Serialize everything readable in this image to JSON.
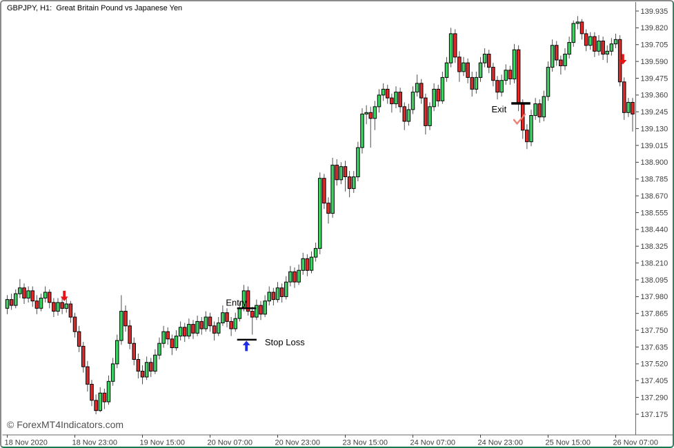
{
  "window": {
    "title": "GBPJPY, H1:  Great Britain Pound vs Japanese Yen",
    "watermark": "© ForexMT4Indicators.com"
  },
  "colors": {
    "background": "#ffffff",
    "bull": "#3ed164",
    "bear": "#e02a2a",
    "candle_outline": "#000000",
    "wick": "#4d4d4d",
    "annotation_line": "#000000",
    "annotation_text": "#000000",
    "buy_arrow": "#1f2de8",
    "sell_arrow": "#ea1212",
    "checkmark": "#ef8070",
    "axis_text": "#3d3d3d",
    "axis_line": "#666666",
    "watermark_text": "#4f4f4f",
    "window_border": "#157a50"
  },
  "chart_data": {
    "type": "candlestick",
    "symbol": "GBPJPY",
    "timeframe": "H1",
    "title": "GBPJPY, H1:  Great Britain Pound vs Japanese Yen",
    "grid": false,
    "legend": false,
    "price_axis": {
      "side": "right",
      "min": 137.175,
      "max": 139.935,
      "step": 0.115,
      "ticks": [
        "139.935",
        "139.820",
        "139.705",
        "139.590",
        "139.475",
        "139.360",
        "139.245",
        "139.130",
        "139.015",
        "138.900",
        "138.785",
        "138.670",
        "138.555",
        "138.440",
        "138.325",
        "138.210",
        "138.095",
        "137.980",
        "137.865",
        "137.750",
        "137.635",
        "137.520",
        "137.405",
        "137.290",
        "137.175"
      ]
    },
    "time_axis": {
      "side": "bottom",
      "ticks": [
        {
          "label": "18 Nov 2020",
          "bar": 0
        },
        {
          "label": "18 Nov 23:00",
          "bar": 16
        },
        {
          "label": "19 Nov 15:00",
          "bar": 32
        },
        {
          "label": "20 Nov 07:00",
          "bar": 48
        },
        {
          "label": "20 Nov 23:00",
          "bar": 64
        },
        {
          "label": "23 Nov 15:00",
          "bar": 80
        },
        {
          "label": "24 Nov 07:00",
          "bar": 96
        },
        {
          "label": "24 Nov 23:00",
          "bar": 112
        },
        {
          "label": "25 Nov 15:00",
          "bar": 128
        },
        {
          "label": "26 Nov 07:00",
          "bar": 144
        }
      ]
    },
    "candles_format": [
      "open",
      "high",
      "low",
      "close"
    ],
    "candles": [
      [
        137.9,
        137.99,
        137.86,
        137.96
      ],
      [
        137.96,
        138.0,
        137.89,
        137.92
      ],
      [
        137.92,
        138.03,
        137.9,
        138.0
      ],
      [
        138.0,
        138.1,
        137.97,
        138.04
      ],
      [
        138.04,
        138.07,
        137.93,
        137.97
      ],
      [
        137.97,
        138.05,
        137.94,
        138.02
      ],
      [
        138.02,
        138.05,
        137.91,
        137.95
      ],
      [
        137.95,
        137.99,
        137.86,
        137.9
      ],
      [
        137.9,
        138.0,
        137.88,
        137.97
      ],
      [
        137.97,
        138.05,
        137.94,
        138.01
      ],
      [
        138.01,
        138.03,
        137.9,
        137.94
      ],
      [
        137.94,
        137.97,
        137.84,
        137.88
      ],
      [
        137.88,
        137.97,
        137.85,
        137.94
      ],
      [
        137.94,
        137.97,
        137.86,
        137.9
      ],
      [
        137.9,
        137.98,
        137.87,
        137.93
      ],
      [
        137.93,
        137.95,
        137.8,
        137.84
      ],
      [
        137.84,
        137.87,
        137.7,
        137.74
      ],
      [
        137.74,
        137.78,
        137.6,
        137.64
      ],
      [
        137.64,
        137.67,
        137.46,
        137.5
      ],
      [
        137.5,
        137.54,
        137.33,
        137.38
      ],
      [
        137.38,
        137.41,
        137.23,
        137.27
      ],
      [
        137.27,
        137.31,
        137.175,
        137.2
      ],
      [
        137.2,
        137.36,
        137.19,
        137.32
      ],
      [
        137.32,
        137.35,
        137.21,
        137.26
      ],
      [
        137.26,
        137.44,
        137.24,
        137.4
      ],
      [
        137.4,
        137.56,
        137.37,
        137.52
      ],
      [
        137.52,
        137.72,
        137.49,
        137.68
      ],
      [
        137.68,
        137.99,
        137.65,
        137.88
      ],
      [
        137.88,
        137.92,
        137.74,
        137.78
      ],
      [
        137.78,
        137.82,
        137.62,
        137.66
      ],
      [
        137.66,
        137.7,
        137.51,
        137.55
      ],
      [
        137.55,
        137.59,
        137.42,
        137.47
      ],
      [
        137.47,
        137.51,
        137.38,
        137.43
      ],
      [
        137.43,
        137.57,
        137.41,
        137.53
      ],
      [
        137.53,
        137.56,
        137.43,
        137.47
      ],
      [
        137.47,
        137.62,
        137.45,
        137.58
      ],
      [
        137.58,
        137.7,
        137.55,
        137.66
      ],
      [
        137.66,
        137.78,
        137.63,
        137.74
      ],
      [
        137.74,
        137.77,
        137.65,
        137.69
      ],
      [
        137.69,
        137.72,
        137.58,
        137.63
      ],
      [
        137.63,
        137.75,
        137.61,
        137.71
      ],
      [
        137.71,
        137.81,
        137.68,
        137.77
      ],
      [
        137.77,
        137.8,
        137.67,
        137.71
      ],
      [
        137.71,
        137.83,
        137.69,
        137.79
      ],
      [
        137.79,
        137.82,
        137.69,
        137.73
      ],
      [
        137.73,
        137.85,
        137.71,
        137.81
      ],
      [
        137.81,
        137.84,
        137.72,
        137.76
      ],
      [
        137.76,
        137.88,
        137.74,
        137.84
      ],
      [
        137.84,
        137.87,
        137.74,
        137.78
      ],
      [
        137.78,
        137.81,
        137.68,
        137.73
      ],
      [
        137.73,
        137.84,
        137.71,
        137.8
      ],
      [
        137.8,
        137.92,
        137.78,
        137.87
      ],
      [
        137.87,
        137.9,
        137.77,
        137.81
      ],
      [
        137.81,
        137.84,
        137.71,
        137.76
      ],
      [
        137.76,
        137.87,
        137.74,
        137.83
      ],
      [
        137.83,
        137.94,
        137.81,
        137.9
      ],
      [
        137.9,
        138.06,
        137.88,
        138.02
      ],
      [
        138.02,
        138.05,
        137.85,
        137.88
      ],
      [
        137.88,
        137.91,
        137.72,
        137.84
      ],
      [
        137.84,
        137.96,
        137.82,
        137.92
      ],
      [
        137.92,
        137.95,
        137.82,
        137.86
      ],
      [
        137.86,
        137.99,
        137.84,
        137.95
      ],
      [
        137.95,
        138.05,
        137.92,
        138.01
      ],
      [
        138.01,
        138.04,
        137.92,
        137.96
      ],
      [
        137.96,
        138.08,
        137.94,
        138.04
      ],
      [
        138.04,
        138.07,
        137.94,
        137.98
      ],
      [
        137.98,
        138.12,
        137.96,
        138.08
      ],
      [
        138.08,
        138.19,
        138.05,
        138.15
      ],
      [
        138.15,
        138.18,
        138.04,
        138.08
      ],
      [
        138.08,
        138.2,
        138.06,
        138.16
      ],
      [
        138.16,
        138.28,
        138.13,
        138.24
      ],
      [
        138.24,
        138.27,
        138.12,
        138.16
      ],
      [
        138.16,
        138.29,
        138.14,
        138.25
      ],
      [
        138.25,
        138.35,
        138.22,
        138.31
      ],
      [
        138.31,
        138.83,
        138.27,
        138.79
      ],
      [
        138.79,
        138.82,
        138.58,
        138.62
      ],
      [
        138.62,
        138.66,
        138.48,
        138.55
      ],
      [
        138.55,
        138.93,
        138.52,
        138.88
      ],
      [
        138.88,
        138.92,
        138.74,
        138.78
      ],
      [
        138.78,
        138.9,
        138.75,
        138.87
      ],
      [
        138.87,
        138.91,
        138.7,
        138.8
      ],
      [
        138.8,
        138.84,
        138.66,
        138.72
      ],
      [
        138.72,
        138.84,
        138.69,
        138.8
      ],
      [
        138.8,
        139.04,
        138.77,
        139.0
      ],
      [
        139.0,
        139.27,
        138.96,
        139.23
      ],
      [
        139.23,
        139.29,
        139.16,
        139.24
      ],
      [
        139.24,
        139.28,
        139.0,
        139.2
      ],
      [
        139.2,
        139.32,
        139.12,
        139.28
      ],
      [
        139.28,
        139.4,
        139.24,
        139.36
      ],
      [
        139.36,
        139.44,
        139.32,
        139.4
      ],
      [
        139.4,
        139.43,
        139.3,
        139.34
      ],
      [
        139.34,
        139.37,
        139.24,
        139.3
      ],
      [
        139.3,
        139.42,
        139.27,
        139.38
      ],
      [
        139.38,
        139.41,
        139.24,
        139.28
      ],
      [
        139.28,
        139.31,
        139.12,
        139.18
      ],
      [
        139.18,
        139.3,
        139.15,
        139.26
      ],
      [
        139.26,
        139.42,
        139.23,
        139.38
      ],
      [
        139.38,
        139.5,
        139.35,
        139.44
      ],
      [
        139.44,
        139.47,
        139.3,
        139.34
      ],
      [
        139.34,
        139.37,
        139.09,
        139.15
      ],
      [
        139.15,
        139.31,
        139.12,
        139.28
      ],
      [
        139.28,
        139.44,
        139.25,
        139.4
      ],
      [
        139.4,
        139.43,
        139.28,
        139.32
      ],
      [
        139.32,
        139.52,
        139.3,
        139.48
      ],
      [
        139.48,
        139.62,
        139.45,
        139.58
      ],
      [
        139.58,
        139.82,
        139.55,
        139.78
      ],
      [
        139.78,
        139.81,
        139.58,
        139.62
      ],
      [
        139.62,
        139.66,
        139.45,
        139.52
      ],
      [
        139.52,
        139.62,
        139.49,
        139.58
      ],
      [
        139.58,
        139.61,
        139.44,
        139.48
      ],
      [
        139.48,
        139.52,
        139.35,
        139.4
      ],
      [
        139.4,
        139.52,
        139.37,
        139.48
      ],
      [
        139.48,
        139.62,
        139.45,
        139.58
      ],
      [
        139.58,
        139.68,
        139.55,
        139.64
      ],
      [
        139.64,
        139.67,
        139.51,
        139.55
      ],
      [
        139.55,
        139.58,
        139.42,
        139.46
      ],
      [
        139.46,
        139.49,
        139.33,
        139.38
      ],
      [
        139.38,
        139.5,
        139.35,
        139.46
      ],
      [
        139.46,
        139.57,
        139.43,
        139.53
      ],
      [
        139.53,
        139.56,
        139.43,
        139.47
      ],
      [
        139.47,
        139.71,
        139.44,
        139.67
      ],
      [
        139.67,
        139.7,
        139.25,
        139.3
      ],
      [
        139.3,
        139.33,
        139.06,
        139.12
      ],
      [
        139.12,
        139.16,
        138.99,
        139.04
      ],
      [
        139.04,
        139.26,
        139.01,
        139.22
      ],
      [
        139.22,
        139.34,
        139.19,
        139.3
      ],
      [
        139.3,
        139.33,
        139.17,
        139.21
      ],
      [
        139.21,
        139.39,
        139.18,
        139.35
      ],
      [
        139.35,
        139.59,
        139.32,
        139.55
      ],
      [
        139.55,
        139.74,
        139.52,
        139.7
      ],
      [
        139.7,
        139.73,
        139.56,
        139.6
      ],
      [
        139.6,
        139.63,
        139.5,
        139.56
      ],
      [
        139.56,
        139.68,
        139.53,
        139.64
      ],
      [
        139.64,
        139.76,
        139.61,
        139.72
      ],
      [
        139.72,
        139.87,
        139.69,
        139.85
      ],
      [
        139.85,
        139.9,
        139.81,
        139.86
      ],
      [
        139.86,
        139.88,
        139.74,
        139.78
      ],
      [
        139.78,
        139.81,
        139.66,
        139.7
      ],
      [
        139.7,
        139.79,
        139.67,
        139.76
      ],
      [
        139.76,
        139.79,
        139.62,
        139.66
      ],
      [
        139.66,
        139.77,
        139.63,
        139.73
      ],
      [
        139.73,
        139.76,
        139.6,
        139.64
      ],
      [
        139.64,
        139.7,
        139.58,
        139.66
      ],
      [
        139.66,
        139.75,
        139.63,
        139.71
      ],
      [
        139.71,
        139.78,
        139.68,
        139.74
      ],
      [
        139.74,
        139.77,
        139.42,
        139.45
      ],
      [
        139.45,
        139.48,
        139.19,
        139.24
      ],
      [
        139.24,
        139.34,
        139.21,
        139.31
      ],
      [
        139.31,
        139.34,
        139.11,
        139.23
      ]
    ],
    "annotations": {
      "entry": {
        "label": "Entry",
        "price": 137.9,
        "bar_from": 54.4,
        "bar_to": 58.9,
        "label_side": "left-above"
      },
      "stop_loss": {
        "label": "Stop Loss",
        "price": 137.685,
        "bar_from": 54.4,
        "bar_to": 59.0,
        "label_side": "right"
      },
      "exit": {
        "label": "Exit",
        "price": 139.303,
        "bar_from": 119.3,
        "bar_to": 123.8,
        "label_side": "left"
      },
      "signals": [
        {
          "type": "sell",
          "bar": 13.5,
          "price": 138.02
        },
        {
          "type": "buy",
          "bar": 56.6,
          "price": 137.678
        },
        {
          "type": "sell",
          "bar": 145.7,
          "price": 139.64
        }
      ],
      "checkmark": {
        "bar": 120.9,
        "price": 139.19
      }
    }
  }
}
